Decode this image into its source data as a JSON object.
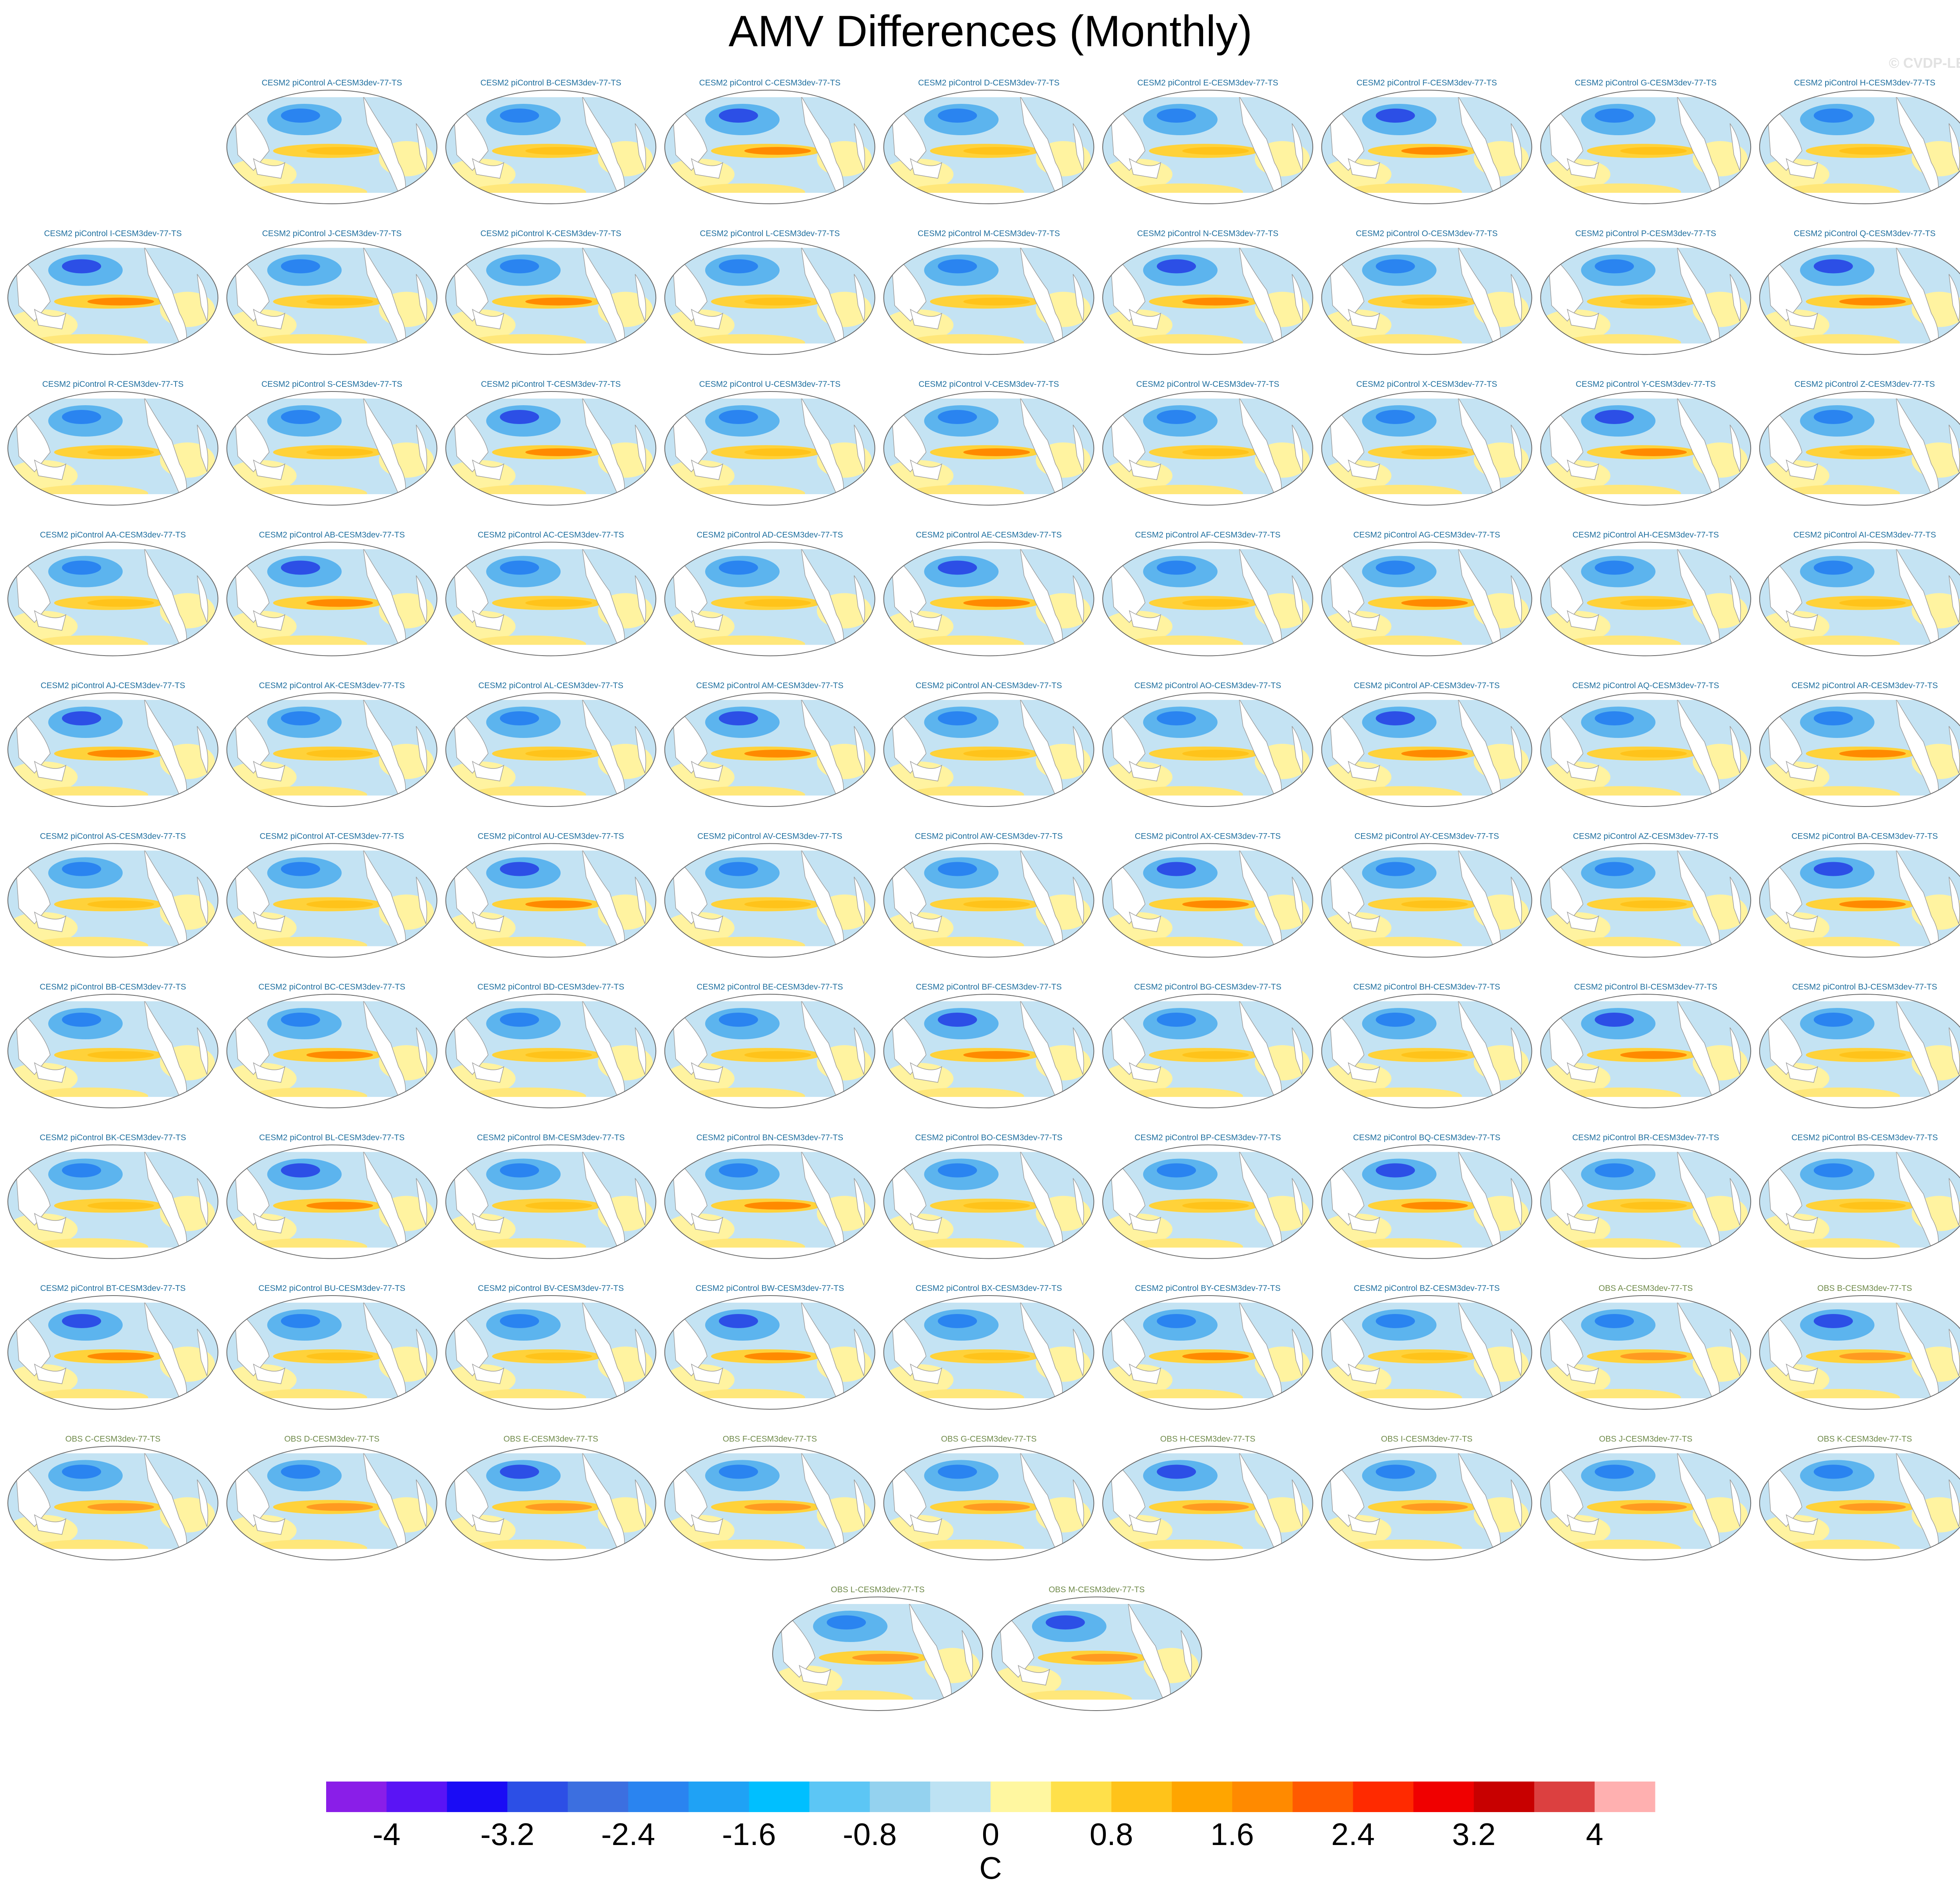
{
  "title": "AMV Differences (Monthly)",
  "watermark": "© CVDP-LE",
  "chart_data": {
    "type": "heatmap",
    "title": "AMV Differences (Monthly)",
    "colorbar": {
      "label": "C",
      "tick_labels": [
        "-4",
        "-3.2",
        "-2.4",
        "-1.6",
        "-0.8",
        "0",
        "0.8",
        "1.6",
        "2.4",
        "3.2",
        "4"
      ],
      "colors": [
        "#8a1ee8",
        "#5a14f5",
        "#1a0cf5",
        "#2c4fe6",
        "#3c6fe0",
        "#2a84f0",
        "#1fa2f5",
        "#00bfff",
        "#5cc6f5",
        "#94d2ef",
        "#bde2f3",
        "#fff7a0",
        "#ffe04a",
        "#ffc31a",
        "#ffa500",
        "#ff8a00",
        "#ff5a00",
        "#ff2a00",
        "#f00000",
        "#c80000",
        "#dc4040",
        "#ffb0b0"
      ]
    },
    "panels": [
      {
        "label": "CESM2 piControl A-CESM3dev-77-TS",
        "group": "model"
      },
      {
        "label": "CESM2 piControl B-CESM3dev-77-TS",
        "group": "model"
      },
      {
        "label": "CESM2 piControl C-CESM3dev-77-TS",
        "group": "model"
      },
      {
        "label": "CESM2 piControl D-CESM3dev-77-TS",
        "group": "model"
      },
      {
        "label": "CESM2 piControl E-CESM3dev-77-TS",
        "group": "model"
      },
      {
        "label": "CESM2 piControl F-CESM3dev-77-TS",
        "group": "model"
      },
      {
        "label": "CESM2 piControl G-CESM3dev-77-TS",
        "group": "model"
      },
      {
        "label": "CESM2 piControl H-CESM3dev-77-TS",
        "group": "model"
      },
      {
        "label": "CESM2 piControl I-CESM3dev-77-TS",
        "group": "model"
      },
      {
        "label": "CESM2 piControl J-CESM3dev-77-TS",
        "group": "model"
      },
      {
        "label": "CESM2 piControl K-CESM3dev-77-TS",
        "group": "model"
      },
      {
        "label": "CESM2 piControl L-CESM3dev-77-TS",
        "group": "model"
      },
      {
        "label": "CESM2 piControl M-CESM3dev-77-TS",
        "group": "model"
      },
      {
        "label": "CESM2 piControl N-CESM3dev-77-TS",
        "group": "model"
      },
      {
        "label": "CESM2 piControl O-CESM3dev-77-TS",
        "group": "model"
      },
      {
        "label": "CESM2 piControl P-CESM3dev-77-TS",
        "group": "model"
      },
      {
        "label": "CESM2 piControl Q-CESM3dev-77-TS",
        "group": "model"
      },
      {
        "label": "CESM2 piControl R-CESM3dev-77-TS",
        "group": "model"
      },
      {
        "label": "CESM2 piControl S-CESM3dev-77-TS",
        "group": "model"
      },
      {
        "label": "CESM2 piControl T-CESM3dev-77-TS",
        "group": "model"
      },
      {
        "label": "CESM2 piControl U-CESM3dev-77-TS",
        "group": "model"
      },
      {
        "label": "CESM2 piControl V-CESM3dev-77-TS",
        "group": "model"
      },
      {
        "label": "CESM2 piControl W-CESM3dev-77-TS",
        "group": "model"
      },
      {
        "label": "CESM2 piControl X-CESM3dev-77-TS",
        "group": "model"
      },
      {
        "label": "CESM2 piControl Y-CESM3dev-77-TS",
        "group": "model"
      },
      {
        "label": "CESM2 piControl Z-CESM3dev-77-TS",
        "group": "model"
      },
      {
        "label": "CESM2 piControl AA-CESM3dev-77-TS",
        "group": "model"
      },
      {
        "label": "CESM2 piControl AB-CESM3dev-77-TS",
        "group": "model"
      },
      {
        "label": "CESM2 piControl AC-CESM3dev-77-TS",
        "group": "model"
      },
      {
        "label": "CESM2 piControl AD-CESM3dev-77-TS",
        "group": "model"
      },
      {
        "label": "CESM2 piControl AE-CESM3dev-77-TS",
        "group": "model"
      },
      {
        "label": "CESM2 piControl AF-CESM3dev-77-TS",
        "group": "model"
      },
      {
        "label": "CESM2 piControl AG-CESM3dev-77-TS",
        "group": "model"
      },
      {
        "label": "CESM2 piControl AH-CESM3dev-77-TS",
        "group": "model"
      },
      {
        "label": "CESM2 piControl AI-CESM3dev-77-TS",
        "group": "model"
      },
      {
        "label": "CESM2 piControl AJ-CESM3dev-77-TS",
        "group": "model"
      },
      {
        "label": "CESM2 piControl AK-CESM3dev-77-TS",
        "group": "model"
      },
      {
        "label": "CESM2 piControl AL-CESM3dev-77-TS",
        "group": "model"
      },
      {
        "label": "CESM2 piControl AM-CESM3dev-77-TS",
        "group": "model"
      },
      {
        "label": "CESM2 piControl AN-CESM3dev-77-TS",
        "group": "model"
      },
      {
        "label": "CESM2 piControl AO-CESM3dev-77-TS",
        "group": "model"
      },
      {
        "label": "CESM2 piControl AP-CESM3dev-77-TS",
        "group": "model"
      },
      {
        "label": "CESM2 piControl AQ-CESM3dev-77-TS",
        "group": "model"
      },
      {
        "label": "CESM2 piControl AR-CESM3dev-77-TS",
        "group": "model"
      },
      {
        "label": "CESM2 piControl AS-CESM3dev-77-TS",
        "group": "model"
      },
      {
        "label": "CESM2 piControl AT-CESM3dev-77-TS",
        "group": "model"
      },
      {
        "label": "CESM2 piControl AU-CESM3dev-77-TS",
        "group": "model"
      },
      {
        "label": "CESM2 piControl AV-CESM3dev-77-TS",
        "group": "model"
      },
      {
        "label": "CESM2 piControl AW-CESM3dev-77-TS",
        "group": "model"
      },
      {
        "label": "CESM2 piControl AX-CESM3dev-77-TS",
        "group": "model"
      },
      {
        "label": "CESM2 piControl AY-CESM3dev-77-TS",
        "group": "model"
      },
      {
        "label": "CESM2 piControl AZ-CESM3dev-77-TS",
        "group": "model"
      },
      {
        "label": "CESM2 piControl BA-CESM3dev-77-TS",
        "group": "model"
      },
      {
        "label": "CESM2 piControl BB-CESM3dev-77-TS",
        "group": "model"
      },
      {
        "label": "CESM2 piControl BC-CESM3dev-77-TS",
        "group": "model"
      },
      {
        "label": "CESM2 piControl BD-CESM3dev-77-TS",
        "group": "model"
      },
      {
        "label": "CESM2 piControl BE-CESM3dev-77-TS",
        "group": "model"
      },
      {
        "label": "CESM2 piControl BF-CESM3dev-77-TS",
        "group": "model"
      },
      {
        "label": "CESM2 piControl BG-CESM3dev-77-TS",
        "group": "model"
      },
      {
        "label": "CESM2 piControl BH-CESM3dev-77-TS",
        "group": "model"
      },
      {
        "label": "CESM2 piControl BI-CESM3dev-77-TS",
        "group": "model"
      },
      {
        "label": "CESM2 piControl BJ-CESM3dev-77-TS",
        "group": "model"
      },
      {
        "label": "CESM2 piControl BK-CESM3dev-77-TS",
        "group": "model"
      },
      {
        "label": "CESM2 piControl BL-CESM3dev-77-TS",
        "group": "model"
      },
      {
        "label": "CESM2 piControl BM-CESM3dev-77-TS",
        "group": "model"
      },
      {
        "label": "CESM2 piControl BN-CESM3dev-77-TS",
        "group": "model"
      },
      {
        "label": "CESM2 piControl BO-CESM3dev-77-TS",
        "group": "model"
      },
      {
        "label": "CESM2 piControl BP-CESM3dev-77-TS",
        "group": "model"
      },
      {
        "label": "CESM2 piControl BQ-CESM3dev-77-TS",
        "group": "model"
      },
      {
        "label": "CESM2 piControl BR-CESM3dev-77-TS",
        "group": "model"
      },
      {
        "label": "CESM2 piControl BS-CESM3dev-77-TS",
        "group": "model"
      },
      {
        "label": "CESM2 piControl BT-CESM3dev-77-TS",
        "group": "model"
      },
      {
        "label": "CESM2 piControl BU-CESM3dev-77-TS",
        "group": "model"
      },
      {
        "label": "CESM2 piControl BV-CESM3dev-77-TS",
        "group": "model"
      },
      {
        "label": "CESM2 piControl BW-CESM3dev-77-TS",
        "group": "model"
      },
      {
        "label": "CESM2 piControl BX-CESM3dev-77-TS",
        "group": "model"
      },
      {
        "label": "CESM2 piControl BY-CESM3dev-77-TS",
        "group": "model"
      },
      {
        "label": "CESM2 piControl BZ-CESM3dev-77-TS",
        "group": "model"
      },
      {
        "label": "OBS A-CESM3dev-77-TS",
        "group": "obs"
      },
      {
        "label": "OBS B-CESM3dev-77-TS",
        "group": "obs"
      },
      {
        "label": "OBS C-CESM3dev-77-TS",
        "group": "obs"
      },
      {
        "label": "OBS D-CESM3dev-77-TS",
        "group": "obs"
      },
      {
        "label": "OBS E-CESM3dev-77-TS",
        "group": "obs"
      },
      {
        "label": "OBS F-CESM3dev-77-TS",
        "group": "obs"
      },
      {
        "label": "OBS G-CESM3dev-77-TS",
        "group": "obs"
      },
      {
        "label": "OBS H-CESM3dev-77-TS",
        "group": "obs"
      },
      {
        "label": "OBS I-CESM3dev-77-TS",
        "group": "obs"
      },
      {
        "label": "OBS J-CESM3dev-77-TS",
        "group": "obs"
      },
      {
        "label": "OBS K-CESM3dev-77-TS",
        "group": "obs"
      },
      {
        "label": "OBS L-CESM3dev-77-TS",
        "group": "obs"
      },
      {
        "label": "OBS M-CESM3dev-77-TS",
        "group": "obs"
      }
    ],
    "label_colors": {
      "model": "#1f6f9f",
      "obs": "#6f8a4a"
    }
  }
}
